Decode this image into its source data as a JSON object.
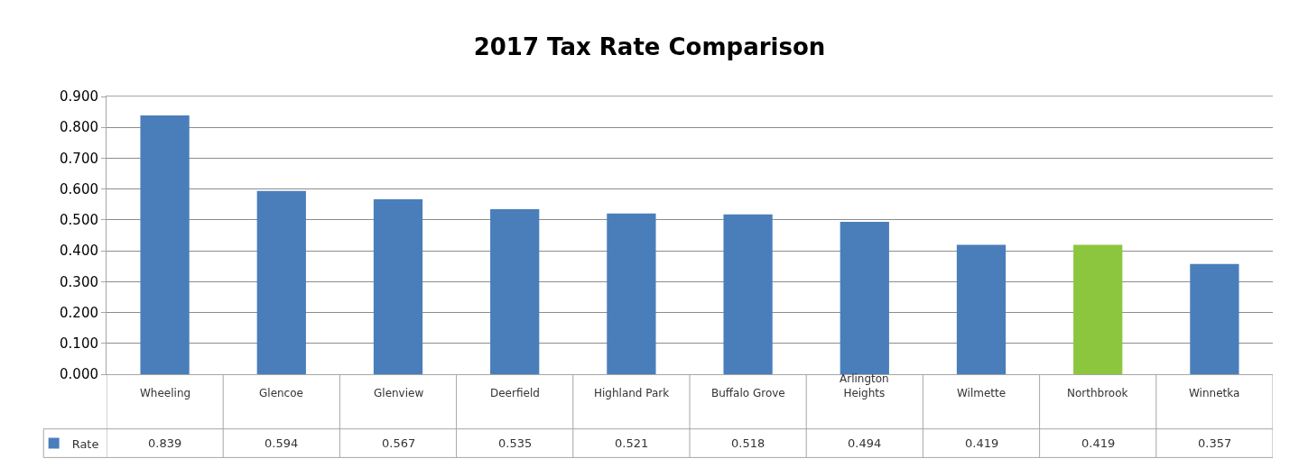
{
  "chart_data": {
    "type": "bar",
    "title": "2017 Tax Rate Comparison",
    "categories": [
      "Wheeling",
      "Glencoe",
      "Glenview",
      "Deerfield",
      "Highland Park",
      "Buffalo Grove",
      "Arlington Heights",
      "Wilmette",
      "Northbrook",
      "Winnetka"
    ],
    "series": [
      {
        "name": "Rate",
        "colors": [
          "#4a7ebb",
          "#4a7ebb",
          "#4a7ebb",
          "#4a7ebb",
          "#4a7ebb",
          "#4a7ebb",
          "#4a7ebb",
          "#4a7ebb",
          "#8cc63f",
          "#4a7ebb"
        ],
        "values": [
          0.839,
          0.594,
          0.567,
          0.535,
          0.521,
          0.518,
          0.494,
          0.419,
          0.419,
          0.357
        ]
      }
    ],
    "ylim": [
      0,
      0.9
    ],
    "yticks": [
      {
        "value": 0,
        "label": "0.000"
      },
      {
        "value": 0.1,
        "label": "0.100"
      },
      {
        "value": 0.2,
        "label": "0.200"
      },
      {
        "value": 0.3,
        "label": "0.300"
      },
      {
        "value": 0.4,
        "label": "0.400"
      },
      {
        "value": 0.5,
        "label": "0.500"
      },
      {
        "value": 0.6,
        "label": "0.600"
      },
      {
        "value": 0.7,
        "label": "0.700"
      },
      {
        "value": 0.8,
        "label": "0.800"
      },
      {
        "value": 0.9,
        "label": "0.900"
      }
    ],
    "grid": "y",
    "data_labels": true,
    "legend": "bottom left"
  }
}
